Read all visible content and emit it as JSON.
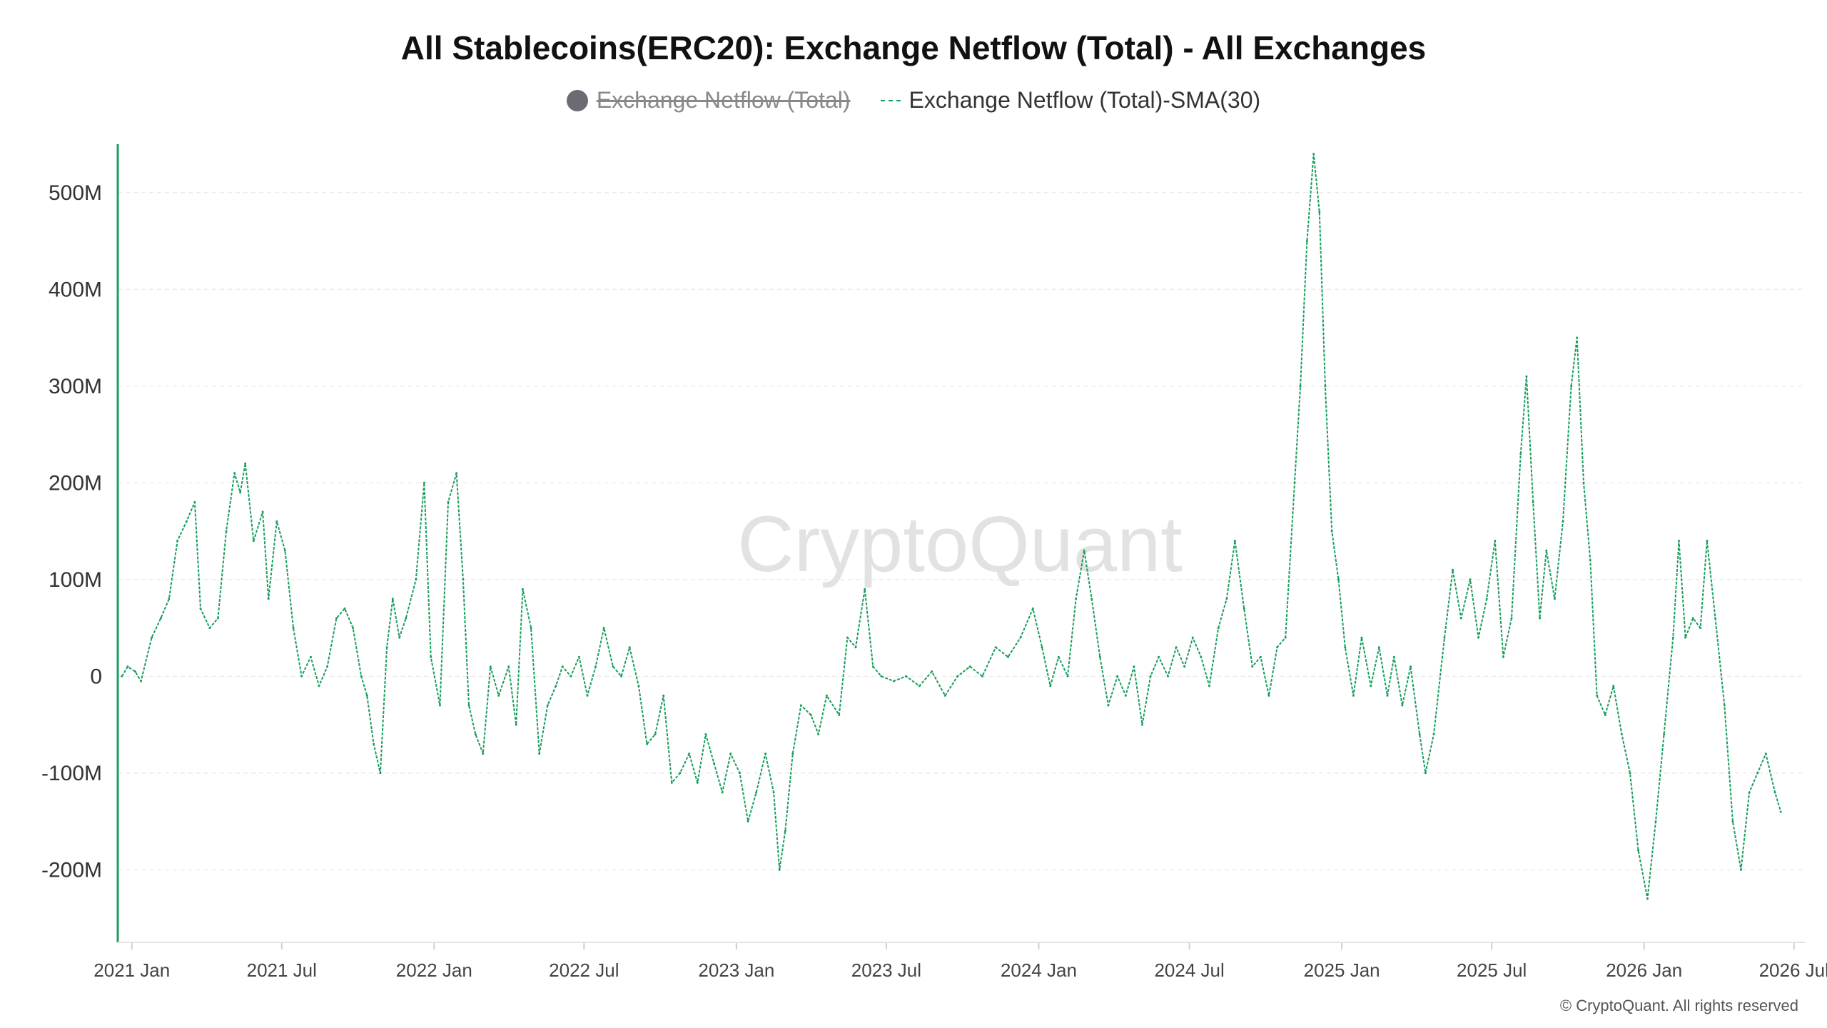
{
  "chart_data": {
    "type": "line",
    "title": "All Stablecoins(ERC20): Exchange Netflow (Total) - All Exchanges",
    "legend": [
      {
        "name": "Exchange Netflow (Total)",
        "color": "#6b6b73",
        "hidden": true
      },
      {
        "name": "Exchange Netflow (Total)-SMA(30)",
        "color": "#1a9e5c",
        "hidden": false
      }
    ],
    "legend_position": "top-center",
    "grid": true,
    "ylim": [
      -275,
      550
    ],
    "y_ticks": [
      -200,
      -100,
      0,
      100,
      200,
      300,
      400,
      500
    ],
    "y_tick_labels": [
      "-200M",
      "-100M",
      "0",
      "100M",
      "200M",
      "300M",
      "400M",
      "500M"
    ],
    "x_ticks": [
      "2021-01-01",
      "2021-07-01",
      "2022-01-01",
      "2022-07-01",
      "2023-01-01",
      "2023-07-01",
      "2024-01-01",
      "2024-07-01",
      "2025-01-01",
      "2025-07-01",
      "2026-01-01",
      "2026-07-01"
    ],
    "x_tick_labels": [
      "2021 Jan",
      "2021 Jul",
      "2022 Jan",
      "2022 Jul",
      "2023 Jan",
      "2023 Jul",
      "2024 Jan",
      "2024 Jul",
      "2025 Jan",
      "2025 Jul",
      "2026 Jan",
      "2026 Jul"
    ],
    "xlim": [
      "2020-12-15",
      "2026-07-15"
    ],
    "series": [
      {
        "name": "Exchange Netflow (Total)-SMA(30)",
        "color": "#1a9e5c",
        "style": "dashed",
        "unit": "M",
        "points": [
          [
            "2020-12-20",
            0
          ],
          [
            "2020-12-27",
            10
          ],
          [
            "2021-01-05",
            5
          ],
          [
            "2021-01-12",
            -5
          ],
          [
            "2021-01-25",
            40
          ],
          [
            "2021-02-05",
            60
          ],
          [
            "2021-02-15",
            80
          ],
          [
            "2021-02-25",
            140
          ],
          [
            "2021-03-08",
            160
          ],
          [
            "2021-03-18",
            180
          ],
          [
            "2021-03-25",
            70
          ],
          [
            "2021-04-05",
            50
          ],
          [
            "2021-04-15",
            60
          ],
          [
            "2021-04-25",
            150
          ],
          [
            "2021-05-05",
            210
          ],
          [
            "2021-05-12",
            190
          ],
          [
            "2021-05-18",
            220
          ],
          [
            "2021-05-28",
            140
          ],
          [
            "2021-06-08",
            170
          ],
          [
            "2021-06-15",
            80
          ],
          [
            "2021-06-25",
            160
          ],
          [
            "2021-07-05",
            130
          ],
          [
            "2021-07-15",
            50
          ],
          [
            "2021-07-25",
            0
          ],
          [
            "2021-08-05",
            20
          ],
          [
            "2021-08-15",
            -10
          ],
          [
            "2021-08-25",
            10
          ],
          [
            "2021-09-05",
            60
          ],
          [
            "2021-09-15",
            70
          ],
          [
            "2021-09-25",
            50
          ],
          [
            "2021-10-05",
            0
          ],
          [
            "2021-10-12",
            -20
          ],
          [
            "2021-10-20",
            -70
          ],
          [
            "2021-10-28",
            -100
          ],
          [
            "2021-11-05",
            30
          ],
          [
            "2021-11-12",
            80
          ],
          [
            "2021-11-20",
            40
          ],
          [
            "2021-11-28",
            60
          ],
          [
            "2021-12-10",
            100
          ],
          [
            "2021-12-20",
            200
          ],
          [
            "2021-12-28",
            20
          ],
          [
            "2022-01-08",
            -30
          ],
          [
            "2022-01-18",
            180
          ],
          [
            "2022-01-28",
            210
          ],
          [
            "2022-02-05",
            100
          ],
          [
            "2022-02-12",
            -30
          ],
          [
            "2022-02-20",
            -60
          ],
          [
            "2022-03-01",
            -80
          ],
          [
            "2022-03-10",
            10
          ],
          [
            "2022-03-20",
            -20
          ],
          [
            "2022-04-01",
            10
          ],
          [
            "2022-04-10",
            -50
          ],
          [
            "2022-04-18",
            90
          ],
          [
            "2022-04-28",
            50
          ],
          [
            "2022-05-08",
            -80
          ],
          [
            "2022-05-18",
            -30
          ],
          [
            "2022-05-28",
            -10
          ],
          [
            "2022-06-05",
            10
          ],
          [
            "2022-06-15",
            0
          ],
          [
            "2022-06-25",
            20
          ],
          [
            "2022-07-05",
            -20
          ],
          [
            "2022-07-15",
            10
          ],
          [
            "2022-07-25",
            50
          ],
          [
            "2022-08-05",
            10
          ],
          [
            "2022-08-15",
            0
          ],
          [
            "2022-08-25",
            30
          ],
          [
            "2022-09-05",
            -10
          ],
          [
            "2022-09-15",
            -70
          ],
          [
            "2022-09-25",
            -60
          ],
          [
            "2022-10-05",
            -20
          ],
          [
            "2022-10-15",
            -110
          ],
          [
            "2022-10-25",
            -100
          ],
          [
            "2022-11-05",
            -80
          ],
          [
            "2022-11-15",
            -110
          ],
          [
            "2022-11-25",
            -60
          ],
          [
            "2022-12-05",
            -90
          ],
          [
            "2022-12-15",
            -120
          ],
          [
            "2022-12-25",
            -80
          ],
          [
            "2023-01-05",
            -100
          ],
          [
            "2023-01-15",
            -150
          ],
          [
            "2023-01-25",
            -120
          ],
          [
            "2023-02-05",
            -80
          ],
          [
            "2023-02-15",
            -120
          ],
          [
            "2023-02-22",
            -200
          ],
          [
            "2023-03-01",
            -160
          ],
          [
            "2023-03-10",
            -80
          ],
          [
            "2023-03-20",
            -30
          ],
          [
            "2023-04-01",
            -40
          ],
          [
            "2023-04-10",
            -60
          ],
          [
            "2023-04-20",
            -20
          ],
          [
            "2023-05-05",
            -40
          ],
          [
            "2023-05-15",
            40
          ],
          [
            "2023-05-25",
            30
          ],
          [
            "2023-06-05",
            90
          ],
          [
            "2023-06-15",
            10
          ],
          [
            "2023-06-25",
            0
          ],
          [
            "2023-07-10",
            -5
          ],
          [
            "2023-07-25",
            0
          ],
          [
            "2023-08-10",
            -10
          ],
          [
            "2023-08-25",
            5
          ],
          [
            "2023-09-10",
            -20
          ],
          [
            "2023-09-25",
            0
          ],
          [
            "2023-10-10",
            10
          ],
          [
            "2023-10-25",
            0
          ],
          [
            "2023-11-10",
            30
          ],
          [
            "2023-11-25",
            20
          ],
          [
            "2023-12-10",
            40
          ],
          [
            "2023-12-25",
            70
          ],
          [
            "2024-01-05",
            30
          ],
          [
            "2024-01-15",
            -10
          ],
          [
            "2024-01-25",
            20
          ],
          [
            "2024-02-05",
            0
          ],
          [
            "2024-02-15",
            80
          ],
          [
            "2024-02-25",
            130
          ],
          [
            "2024-03-05",
            80
          ],
          [
            "2024-03-15",
            20
          ],
          [
            "2024-03-25",
            -30
          ],
          [
            "2024-04-05",
            0
          ],
          [
            "2024-04-15",
            -20
          ],
          [
            "2024-04-25",
            10
          ],
          [
            "2024-05-05",
            -50
          ],
          [
            "2024-05-15",
            0
          ],
          [
            "2024-05-25",
            20
          ],
          [
            "2024-06-05",
            0
          ],
          [
            "2024-06-15",
            30
          ],
          [
            "2024-06-25",
            10
          ],
          [
            "2024-07-05",
            40
          ],
          [
            "2024-07-15",
            20
          ],
          [
            "2024-07-25",
            -10
          ],
          [
            "2024-08-05",
            50
          ],
          [
            "2024-08-15",
            80
          ],
          [
            "2024-08-25",
            140
          ],
          [
            "2024-09-05",
            70
          ],
          [
            "2024-09-15",
            10
          ],
          [
            "2024-09-25",
            20
          ],
          [
            "2024-10-05",
            -20
          ],
          [
            "2024-10-15",
            30
          ],
          [
            "2024-10-25",
            40
          ],
          [
            "2024-11-05",
            200
          ],
          [
            "2024-11-12",
            300
          ],
          [
            "2024-11-20",
            450
          ],
          [
            "2024-11-28",
            540
          ],
          [
            "2024-12-05",
            480
          ],
          [
            "2024-12-12",
            300
          ],
          [
            "2024-12-20",
            150
          ],
          [
            "2024-12-28",
            100
          ],
          [
            "2025-01-05",
            30
          ],
          [
            "2025-01-15",
            -20
          ],
          [
            "2025-01-25",
            40
          ],
          [
            "2025-02-05",
            -10
          ],
          [
            "2025-02-15",
            30
          ],
          [
            "2025-02-25",
            -20
          ],
          [
            "2025-03-05",
            20
          ],
          [
            "2025-03-15",
            -30
          ],
          [
            "2025-03-25",
            10
          ],
          [
            "2025-04-05",
            -60
          ],
          [
            "2025-04-12",
            -100
          ],
          [
            "2025-04-22",
            -60
          ],
          [
            "2025-05-05",
            40
          ],
          [
            "2025-05-15",
            110
          ],
          [
            "2025-05-25",
            60
          ],
          [
            "2025-06-05",
            100
          ],
          [
            "2025-06-15",
            40
          ],
          [
            "2025-06-25",
            80
          ],
          [
            "2025-07-05",
            140
          ],
          [
            "2025-07-15",
            20
          ],
          [
            "2025-07-25",
            60
          ],
          [
            "2025-08-05",
            230
          ],
          [
            "2025-08-12",
            310
          ],
          [
            "2025-08-20",
            180
          ],
          [
            "2025-08-28",
            60
          ],
          [
            "2025-09-05",
            130
          ],
          [
            "2025-09-15",
            80
          ],
          [
            "2025-09-25",
            160
          ],
          [
            "2025-10-05",
            300
          ],
          [
            "2025-10-12",
            350
          ],
          [
            "2025-10-20",
            200
          ],
          [
            "2025-10-28",
            120
          ],
          [
            "2025-11-05",
            -20
          ],
          [
            "2025-11-15",
            -40
          ],
          [
            "2025-11-25",
            -10
          ],
          [
            "2025-12-05",
            -60
          ],
          [
            "2025-12-15",
            -100
          ],
          [
            "2025-12-25",
            -180
          ],
          [
            "2026-01-05",
            -230
          ],
          [
            "2026-01-15",
            -150
          ],
          [
            "2026-01-25",
            -60
          ],
          [
            "2026-02-05",
            40
          ],
          [
            "2026-02-12",
            140
          ],
          [
            "2026-02-20",
            40
          ],
          [
            "2026-03-01",
            60
          ],
          [
            "2026-03-10",
            50
          ],
          [
            "2026-03-18",
            140
          ],
          [
            "2026-03-28",
            60
          ],
          [
            "2026-04-08",
            -30
          ],
          [
            "2026-04-18",
            -150
          ],
          [
            "2026-04-28",
            -200
          ],
          [
            "2026-05-08",
            -120
          ],
          [
            "2026-05-18",
            -100
          ],
          [
            "2026-05-28",
            -80
          ],
          [
            "2026-06-08",
            -120
          ],
          [
            "2026-06-15",
            -140
          ]
        ]
      }
    ]
  },
  "watermark": "CryptoQuant",
  "copyright": "© CryptoQuant. All rights reserved"
}
